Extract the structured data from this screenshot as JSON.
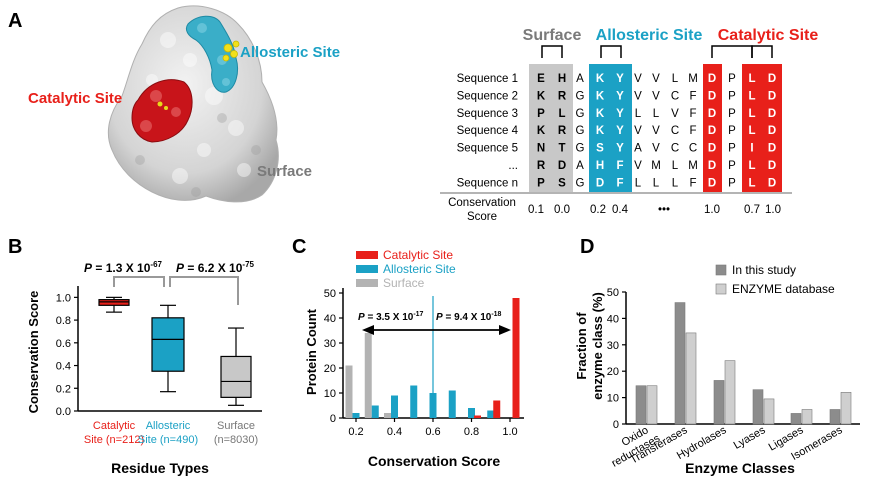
{
  "panel_labels": {
    "a": "A",
    "b": "B",
    "c": "C",
    "d": "D"
  },
  "panel_a": {
    "structure_labels": {
      "catalytic": "Catalytic Site",
      "allosteric": "Allosteric Site",
      "surface": "Surface"
    },
    "group_labels": {
      "surface": "Surface",
      "allosteric": "Allosteric Site",
      "catalytic": "Catalytic Site"
    },
    "sequences": [
      {
        "name": "Sequence 1",
        "residues": [
          "E",
          "H",
          "A",
          "K",
          "Y",
          "V",
          "V",
          "L",
          "M",
          "D",
          "P",
          "L",
          "D"
        ]
      },
      {
        "name": "Sequence 2",
        "residues": [
          "K",
          "R",
          "G",
          "K",
          "Y",
          "V",
          "V",
          "C",
          "F",
          "D",
          "P",
          "L",
          "D"
        ]
      },
      {
        "name": "Sequence 3",
        "residues": [
          "P",
          "L",
          "G",
          "K",
          "Y",
          "L",
          "L",
          "V",
          "F",
          "D",
          "P",
          "L",
          "D"
        ]
      },
      {
        "name": "Sequence 4",
        "residues": [
          "K",
          "R",
          "G",
          "K",
          "Y",
          "V",
          "V",
          "C",
          "F",
          "D",
          "P",
          "L",
          "D"
        ]
      },
      {
        "name": "Sequence 5",
        "residues": [
          "N",
          "T",
          "G",
          "S",
          "Y",
          "A",
          "V",
          "C",
          "C",
          "D",
          "P",
          "I",
          "D"
        ]
      },
      {
        "name": "...",
        "residues": [
          "R",
          "D",
          "A",
          "H",
          "F",
          "V",
          "M",
          "L",
          "M",
          "D",
          "P",
          "L",
          "D"
        ]
      },
      {
        "name": "Sequence n",
        "residues": [
          "P",
          "S",
          "G",
          "D",
          "F",
          "L",
          "L",
          "L",
          "F",
          "D",
          "P",
          "L",
          "D"
        ]
      }
    ],
    "conservation_label": [
      "Conservation",
      "Score"
    ],
    "conservation_scores": [
      "0.1",
      "0.0",
      "0.2",
      "0.4",
      "•••",
      "1.0",
      "0.7",
      "1.0"
    ]
  },
  "panel_b": {
    "p_left": {
      "p": "P",
      "text": " = 1.3 X 10",
      "exp": "-67"
    },
    "p_right": {
      "p": "P",
      "text": " = 6.2 X 10",
      "exp": "-75"
    },
    "ylabel": "Conservation Score",
    "xlabel": "Residue Types",
    "yticks": [
      "0.0",
      "0.2",
      "0.4",
      "0.6",
      "0.8",
      "1.0"
    ],
    "categories": [
      {
        "line1": "Catalytic",
        "line2": "Site (n=212)",
        "color": "#e8201a"
      },
      {
        "line1": "Allosteric",
        "line2": "Site (n=490)",
        "color": "#1ba1c5"
      },
      {
        "line1": "Surface",
        "line2": "(n=8030)",
        "color": "#777777"
      }
    ]
  },
  "panel_c": {
    "legend": [
      {
        "name": "Catalytic Site",
        "color": "#e8201a"
      },
      {
        "name": "Allosteric Site",
        "color": "#1ba1c5"
      },
      {
        "name": "Surface",
        "color": "#b3b3b3"
      }
    ],
    "ylabel": "Protein Count",
    "xlabel": "Conservation Score",
    "yticks": [
      "0",
      "10",
      "20",
      "30",
      "40",
      "50"
    ],
    "xticks": [
      "0.2",
      "0.4",
      "0.6",
      "0.8",
      "1.0"
    ],
    "p_left": {
      "p": "P",
      "text": " = 3.5 X 10",
      "exp": "-17"
    },
    "p_right": {
      "p": "P",
      "text": " = 9.4 X 10",
      "exp": "-18"
    }
  },
  "panel_d": {
    "legend": [
      {
        "name": "In this study",
        "color": "#8c8c8c"
      },
      {
        "name": "ENZYME database",
        "color": "#cfcfcf"
      }
    ],
    "ylabel_line1": "Fraction of",
    "ylabel_line2": "enzyme class (%)",
    "xlabel": "Enzyme Classes",
    "yticks": [
      "0",
      "10",
      "20",
      "30",
      "40",
      "50"
    ],
    "categories": [
      {
        "line1": "Oxido",
        "line2": "reductases"
      },
      {
        "line1": "Transferases",
        "line2": ""
      },
      {
        "line1": "Hydrolases",
        "line2": ""
      },
      {
        "line1": "Lyases",
        "line2": ""
      },
      {
        "line1": "Ligases",
        "line2": ""
      },
      {
        "line1": "Isomerases",
        "line2": ""
      }
    ]
  },
  "chart_data": [
    {
      "type": "box",
      "categories": [
        "Catalytic Site (n=212)",
        "Allosteric Site (n=490)",
        "Surface (n=8030)"
      ],
      "ylabel": "Conservation Score",
      "xlabel": "Residue Types",
      "ylim": [
        0,
        1.1
      ],
      "boxes": [
        {
          "min": 0.87,
          "q1": 0.93,
          "median": 0.96,
          "q3": 0.98,
          "max": 1.0
        },
        {
          "min": 0.17,
          "q1": 0.35,
          "median": 0.63,
          "q3": 0.82,
          "max": 0.93
        },
        {
          "min": 0.05,
          "q1": 0.12,
          "median": 0.26,
          "q3": 0.48,
          "max": 0.73
        }
      ]
    },
    {
      "type": "bar",
      "x": [
        0.2,
        0.3,
        0.4,
        0.5,
        0.6,
        0.7,
        0.8,
        0.9,
        1.0
      ],
      "xlabel": "Conservation Score",
      "ylabel": "Protein Count",
      "ylim": [
        0,
        52
      ],
      "series": [
        {
          "name": "Surface",
          "values": [
            21,
            34,
            2,
            0,
            0,
            0,
            0,
            0,
            0
          ]
        },
        {
          "name": "Allosteric Site",
          "values": [
            2,
            5,
            9,
            13,
            10,
            11,
            4,
            3,
            0
          ]
        },
        {
          "name": "Catalytic Site",
          "values": [
            0,
            0,
            0,
            0,
            0,
            0,
            1,
            7,
            48
          ]
        }
      ]
    },
    {
      "type": "bar",
      "categories": [
        "Oxido reductases",
        "Transferases",
        "Hydrolases",
        "Lyases",
        "Ligases",
        "Isomerases"
      ],
      "xlabel": "Enzyme Classes",
      "ylabel": "Fraction of enzyme class (%)",
      "ylim": [
        0,
        50
      ],
      "series": [
        {
          "name": "In this study",
          "values": [
            14.5,
            46,
            16.5,
            13,
            4,
            5.5
          ]
        },
        {
          "name": "ENZYME database",
          "values": [
            14.5,
            34.5,
            24,
            9.5,
            5.5,
            12
          ]
        }
      ]
    }
  ]
}
